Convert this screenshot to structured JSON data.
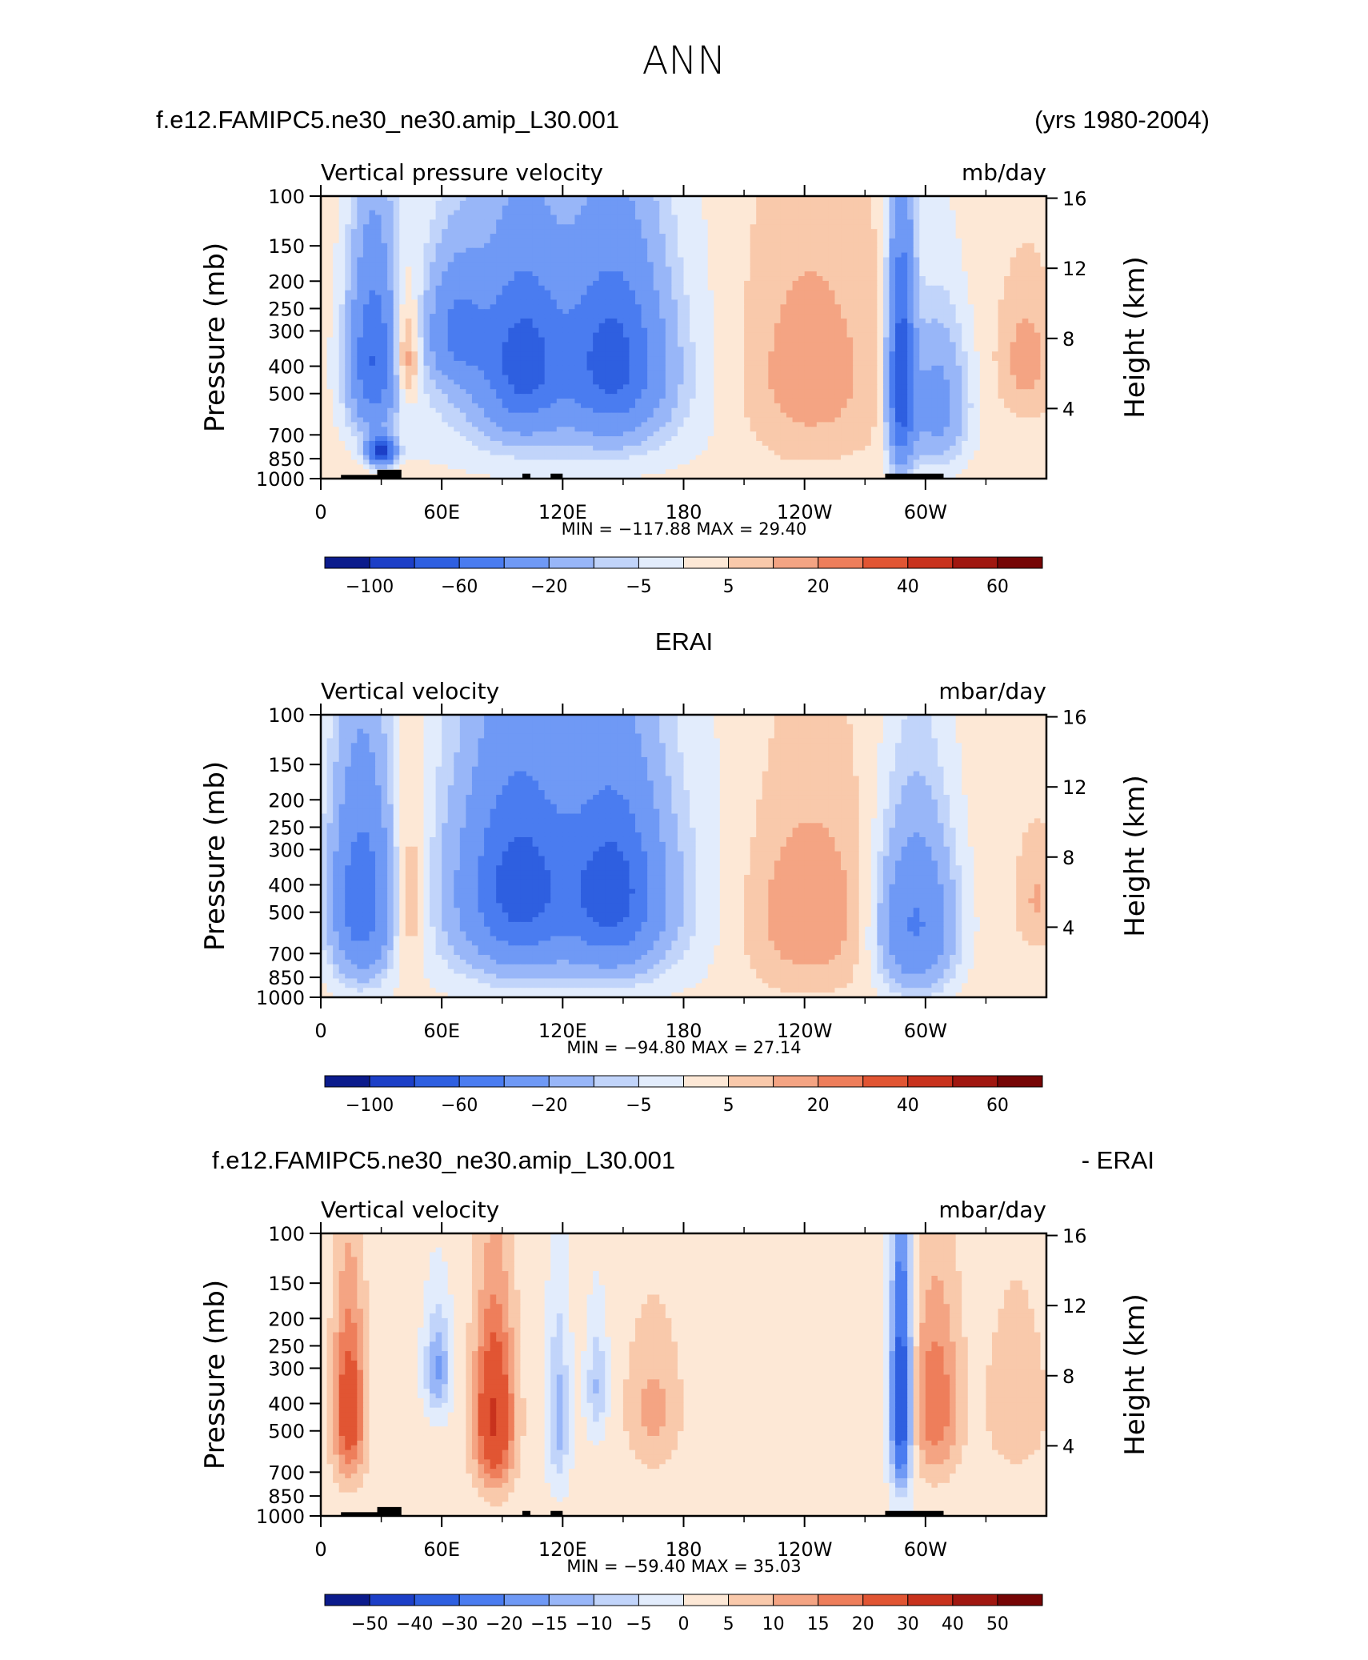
{
  "page_title": "ANN",
  "chart_data": [
    {
      "type": "heatmap",
      "header_left": "f.e12.FAMIPC5.ne30_ne30.amip_L30.001",
      "header_right": "(yrs 1980-2004)",
      "title": "Vertical pressure velocity",
      "units": "mb/day",
      "ylabel": "Pressure (mb)",
      "ylabel_right": "Height (km)",
      "y_ticks": [
        "100",
        "150",
        "200",
        "250",
        "300",
        "400",
        "500",
        "700",
        "850",
        "1000"
      ],
      "y_right_ticks": [
        "16",
        "12",
        "8",
        "4"
      ],
      "x_ticks": [
        "0",
        "60E",
        "120E",
        "180",
        "120W",
        "60W"
      ],
      "stats": "MIN = −117.88   MAX =   29.40",
      "colorbar_labels": [
        "−100",
        "−60",
        "−20",
        "−5",
        "5",
        "20",
        "40",
        "60"
      ],
      "blobs": [
        {
          "lon": 26,
          "p": 380,
          "rx": 11,
          "rp": 260,
          "v": -60
        },
        {
          "lon": 30,
          "p": 800,
          "rx": 6,
          "rp": 80,
          "v": -100
        },
        {
          "lon": 42,
          "p": 370,
          "rx": 7,
          "rp": 160,
          "v": 20
        },
        {
          "lon": 68,
          "p": 300,
          "rx": 14,
          "rp": 140,
          "v": -40
        },
        {
          "lon": 100,
          "p": 380,
          "rx": 20,
          "rp": 250,
          "v": -60
        },
        {
          "lon": 145,
          "p": 380,
          "rx": 22,
          "rp": 260,
          "v": -60
        },
        {
          "lon": 120,
          "p": 450,
          "rx": 75,
          "rp": 420,
          "v": -15
        },
        {
          "lon": 240,
          "p": 420,
          "rx": 38,
          "rp": 380,
          "v": 12
        },
        {
          "lon": 288,
          "p": 450,
          "rx": 6,
          "rp": 380,
          "v": -80
        },
        {
          "lon": 305,
          "p": 550,
          "rx": 15,
          "rp": 300,
          "v": -30
        },
        {
          "lon": 350,
          "p": 380,
          "rx": 14,
          "rp": 200,
          "v": 10
        }
      ],
      "topography": [
        [
          10,
          29,
          970
        ],
        [
          28,
          40,
          930
        ],
        [
          100,
          104,
          960
        ],
        [
          114,
          120,
          960
        ],
        [
          280,
          309,
          960
        ]
      ]
    },
    {
      "type": "heatmap",
      "header_center": "ERAI",
      "title": "Vertical velocity",
      "units": "mbar/day",
      "ylabel": "Pressure (mb)",
      "ylabel_right": "Height (km)",
      "y_ticks": [
        "100",
        "150",
        "200",
        "250",
        "300",
        "400",
        "500",
        "700",
        "850",
        "1000"
      ],
      "y_right_ticks": [
        "16",
        "12",
        "8",
        "4"
      ],
      "x_ticks": [
        "0",
        "60E",
        "120E",
        "180",
        "120W",
        "60W"
      ],
      "stats": "MIN = −94.80   MAX =   27.14",
      "colorbar_labels": [
        "−100",
        "−60",
        "−20",
        "−5",
        "5",
        "20",
        "40",
        "60"
      ],
      "blobs": [
        {
          "lon": 20,
          "p": 450,
          "rx": 14,
          "rp": 340,
          "v": -55
        },
        {
          "lon": 44,
          "p": 450,
          "rx": 9,
          "rp": 320,
          "v": 14
        },
        {
          "lon": 98,
          "p": 400,
          "rx": 25,
          "rp": 310,
          "v": -60
        },
        {
          "lon": 145,
          "p": 420,
          "rx": 22,
          "rp": 300,
          "v": -60
        },
        {
          "lon": 120,
          "p": 450,
          "rx": 80,
          "rp": 450,
          "v": -15
        },
        {
          "lon": 240,
          "p": 500,
          "rx": 35,
          "rp": 380,
          "v": 14
        },
        {
          "lon": 295,
          "p": 550,
          "rx": 18,
          "rp": 350,
          "v": -45
        },
        {
          "lon": 355,
          "p": 450,
          "rx": 10,
          "rp": 200,
          "v": 8
        }
      ],
      "topography": []
    },
    {
      "type": "heatmap",
      "header_left": "f.e12.FAMIPC5.ne30_ne30.amip_L30.001",
      "header_right": "- ERAI",
      "title": "Vertical velocity",
      "units": "mbar/day",
      "ylabel": "Pressure (mb)",
      "ylabel_right": "Height (km)",
      "y_ticks": [
        "100",
        "150",
        "200",
        "250",
        "300",
        "400",
        "500",
        "700",
        "850",
        "1000"
      ],
      "y_right_ticks": [
        "16",
        "12",
        "8",
        "4"
      ],
      "x_ticks": [
        "0",
        "60E",
        "120E",
        "180",
        "120W",
        "60W"
      ],
      "stats": "MIN = −59.40   MAX =   35.03",
      "colorbar_labels": [
        "−50",
        "−40",
        "−30",
        "−20",
        "−15",
        "−10",
        "−5",
        "0",
        "5",
        "10",
        "15",
        "20",
        "30",
        "40",
        "50"
      ],
      "blobs": [
        {
          "lon": 14,
          "p": 420,
          "rx": 8,
          "rp": 300,
          "v": 25
        },
        {
          "lon": 58,
          "p": 300,
          "rx": 6,
          "rp": 120,
          "v": -18
        },
        {
          "lon": 86,
          "p": 450,
          "rx": 10,
          "rp": 320,
          "v": 30
        },
        {
          "lon": 118,
          "p": 450,
          "rx": 5,
          "rp": 300,
          "v": -14
        },
        {
          "lon": 137,
          "p": 350,
          "rx": 5,
          "rp": 150,
          "v": -12
        },
        {
          "lon": 165,
          "p": 420,
          "rx": 14,
          "rp": 250,
          "v": 10
        },
        {
          "lon": 288,
          "p": 400,
          "rx": 5,
          "rp": 350,
          "v": -45
        },
        {
          "lon": 305,
          "p": 400,
          "rx": 12,
          "rp": 300,
          "v": 18
        },
        {
          "lon": 345,
          "p": 400,
          "rx": 16,
          "rp": 280,
          "v": 8
        },
        {
          "lon": 210,
          "p": 350,
          "rx": 15,
          "rp": 200,
          "v": 3
        }
      ],
      "topography": [
        [
          10,
          29,
          970
        ],
        [
          28,
          40,
          930
        ],
        [
          100,
          104,
          960
        ],
        [
          114,
          120,
          960
        ],
        [
          280,
          309,
          960
        ]
      ]
    }
  ],
  "palettes": {
    "abs": [
      "#0b1b8c",
      "#1c3fc7",
      "#2e5fe0",
      "#4a7cf0",
      "#6f99f5",
      "#98b6f8",
      "#c1d4fa",
      "#e2ecfc",
      "#fde8d6",
      "#f9c9ab",
      "#f4a483",
      "#ee7e5b",
      "#e15533",
      "#c8321d",
      "#a01710",
      "#760505"
    ],
    "diff": [
      "#0b1b8c",
      "#1c3fc7",
      "#2e5fe0",
      "#4a7cf0",
      "#6f99f5",
      "#98b6f8",
      "#c1d4fa",
      "#e2ecfc",
      "#fde8d6",
      "#f9c9ab",
      "#f4a483",
      "#ee7e5b",
      "#e15533",
      "#c8321d",
      "#a01710",
      "#760505"
    ]
  },
  "levels": {
    "abs": [
      -100,
      -80,
      -60,
      -40,
      -20,
      -10,
      -5,
      0,
      5,
      10,
      20,
      30,
      40,
      50,
      60
    ],
    "diff": [
      -50,
      -40,
      -30,
      -20,
      -15,
      -10,
      -5,
      0,
      5,
      10,
      15,
      20,
      30,
      40,
      50
    ]
  }
}
